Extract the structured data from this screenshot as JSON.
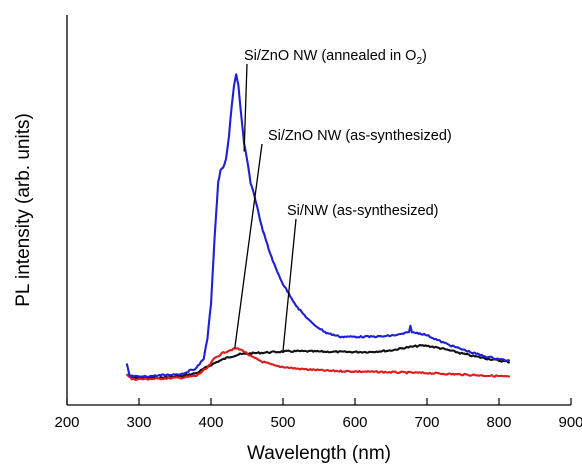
{
  "chart_data": {
    "type": "line",
    "title": "",
    "xlabel": "Wavelength (nm)",
    "ylabel": "PL intensity (arb. units)",
    "xlim": [
      200,
      900
    ],
    "ylim": [
      0,
      100
    ],
    "x_ticks": [
      "200",
      "300",
      "400",
      "500",
      "600",
      "700",
      "800",
      "900"
    ],
    "y_ticks_shown": false,
    "grid": false,
    "legend": "none",
    "series": [
      {
        "name": "Si/ZnO NW (annealed in O2)",
        "color": "#1f1fd6",
        "points": [
          [
            283,
            10.5
          ],
          [
            287,
            7.5
          ],
          [
            300,
            7.2
          ],
          [
            330,
            7.6
          ],
          [
            360,
            8.0
          ],
          [
            380,
            9.5
          ],
          [
            390,
            12
          ],
          [
            395,
            17
          ],
          [
            400,
            26
          ],
          [
            405,
            43
          ],
          [
            410,
            57
          ],
          [
            413,
            60
          ],
          [
            417,
            61
          ],
          [
            421,
            63
          ],
          [
            425,
            69
          ],
          [
            429,
            77
          ],
          [
            432,
            82
          ],
          [
            435,
            84.8
          ],
          [
            438,
            82
          ],
          [
            441,
            76
          ],
          [
            446,
            67
          ],
          [
            450,
            63
          ],
          [
            455,
            57
          ],
          [
            460,
            54
          ],
          [
            470,
            46
          ],
          [
            480,
            40
          ],
          [
            490,
            35
          ],
          [
            500,
            31
          ],
          [
            520,
            25
          ],
          [
            540,
            21
          ],
          [
            560,
            18.5
          ],
          [
            580,
            17.5
          ],
          [
            600,
            17.5
          ],
          [
            620,
            17.5
          ],
          [
            640,
            17.6
          ],
          [
            660,
            18.0
          ],
          [
            675,
            18.6
          ],
          [
            677,
            20.5
          ],
          [
            679,
            18.6
          ],
          [
            690,
            18.4
          ],
          [
            700,
            17.9
          ],
          [
            720,
            16.2
          ],
          [
            740,
            14.8
          ],
          [
            760,
            13.6
          ],
          [
            780,
            12.5
          ],
          [
            800,
            11.8
          ],
          [
            815,
            11.3
          ]
        ]
      },
      {
        "name": "Si/ZnO NW (as-synthesized)",
        "color": "#e01b1b",
        "points": [
          [
            283,
            8.0
          ],
          [
            290,
            6.6
          ],
          [
            320,
            6.7
          ],
          [
            360,
            7.0
          ],
          [
            380,
            7.5
          ],
          [
            395,
            9.5
          ],
          [
            405,
            12.0
          ],
          [
            415,
            13.2
          ],
          [
            425,
            14.0
          ],
          [
            435,
            14.5
          ],
          [
            445,
            13.9
          ],
          [
            455,
            12.5
          ],
          [
            470,
            11.2
          ],
          [
            490,
            10.0
          ],
          [
            520,
            9.3
          ],
          [
            560,
            8.8
          ],
          [
            600,
            8.6
          ],
          [
            650,
            8.4
          ],
          [
            700,
            8.2
          ],
          [
            750,
            7.8
          ],
          [
            800,
            7.4
          ],
          [
            815,
            7.2
          ]
        ]
      },
      {
        "name": "Si/NW (as-synthesized)",
        "color": "#111111",
        "points": [
          [
            283,
            7.8
          ],
          [
            290,
            7.0
          ],
          [
            330,
            7.0
          ],
          [
            360,
            7.4
          ],
          [
            380,
            8.2
          ],
          [
            395,
            9.8
          ],
          [
            410,
            11.2
          ],
          [
            425,
            12.3
          ],
          [
            440,
            13.0
          ],
          [
            460,
            13.3
          ],
          [
            480,
            13.5
          ],
          [
            500,
            13.7
          ],
          [
            520,
            13.8
          ],
          [
            550,
            13.7
          ],
          [
            580,
            13.6
          ],
          [
            620,
            13.6
          ],
          [
            650,
            14.0
          ],
          [
            670,
            14.7
          ],
          [
            690,
            15.2
          ],
          [
            700,
            15.2
          ],
          [
            720,
            14.5
          ],
          [
            740,
            13.6
          ],
          [
            760,
            12.7
          ],
          [
            780,
            12.0
          ],
          [
            800,
            11.4
          ],
          [
            815,
            11.0
          ]
        ]
      }
    ],
    "annotations": [
      {
        "text_main": "Si/ZnO NW (annealed in O",
        "text_sub": "2",
        "text_end": ")",
        "series": "Si/ZnO NW (annealed in O2)",
        "pointer_to": [
          446,
          65
        ]
      },
      {
        "text": "Si/ZnO NW (as-synthesized)",
        "series": "Si/ZnO NW (as-synthesized)",
        "pointer_to": [
          433,
          14.5
        ]
      },
      {
        "text": "Si/NW (as-synthesized)",
        "series": "Si/NW (as-synthesized)",
        "pointer_to": [
          500,
          13.8
        ]
      }
    ]
  }
}
